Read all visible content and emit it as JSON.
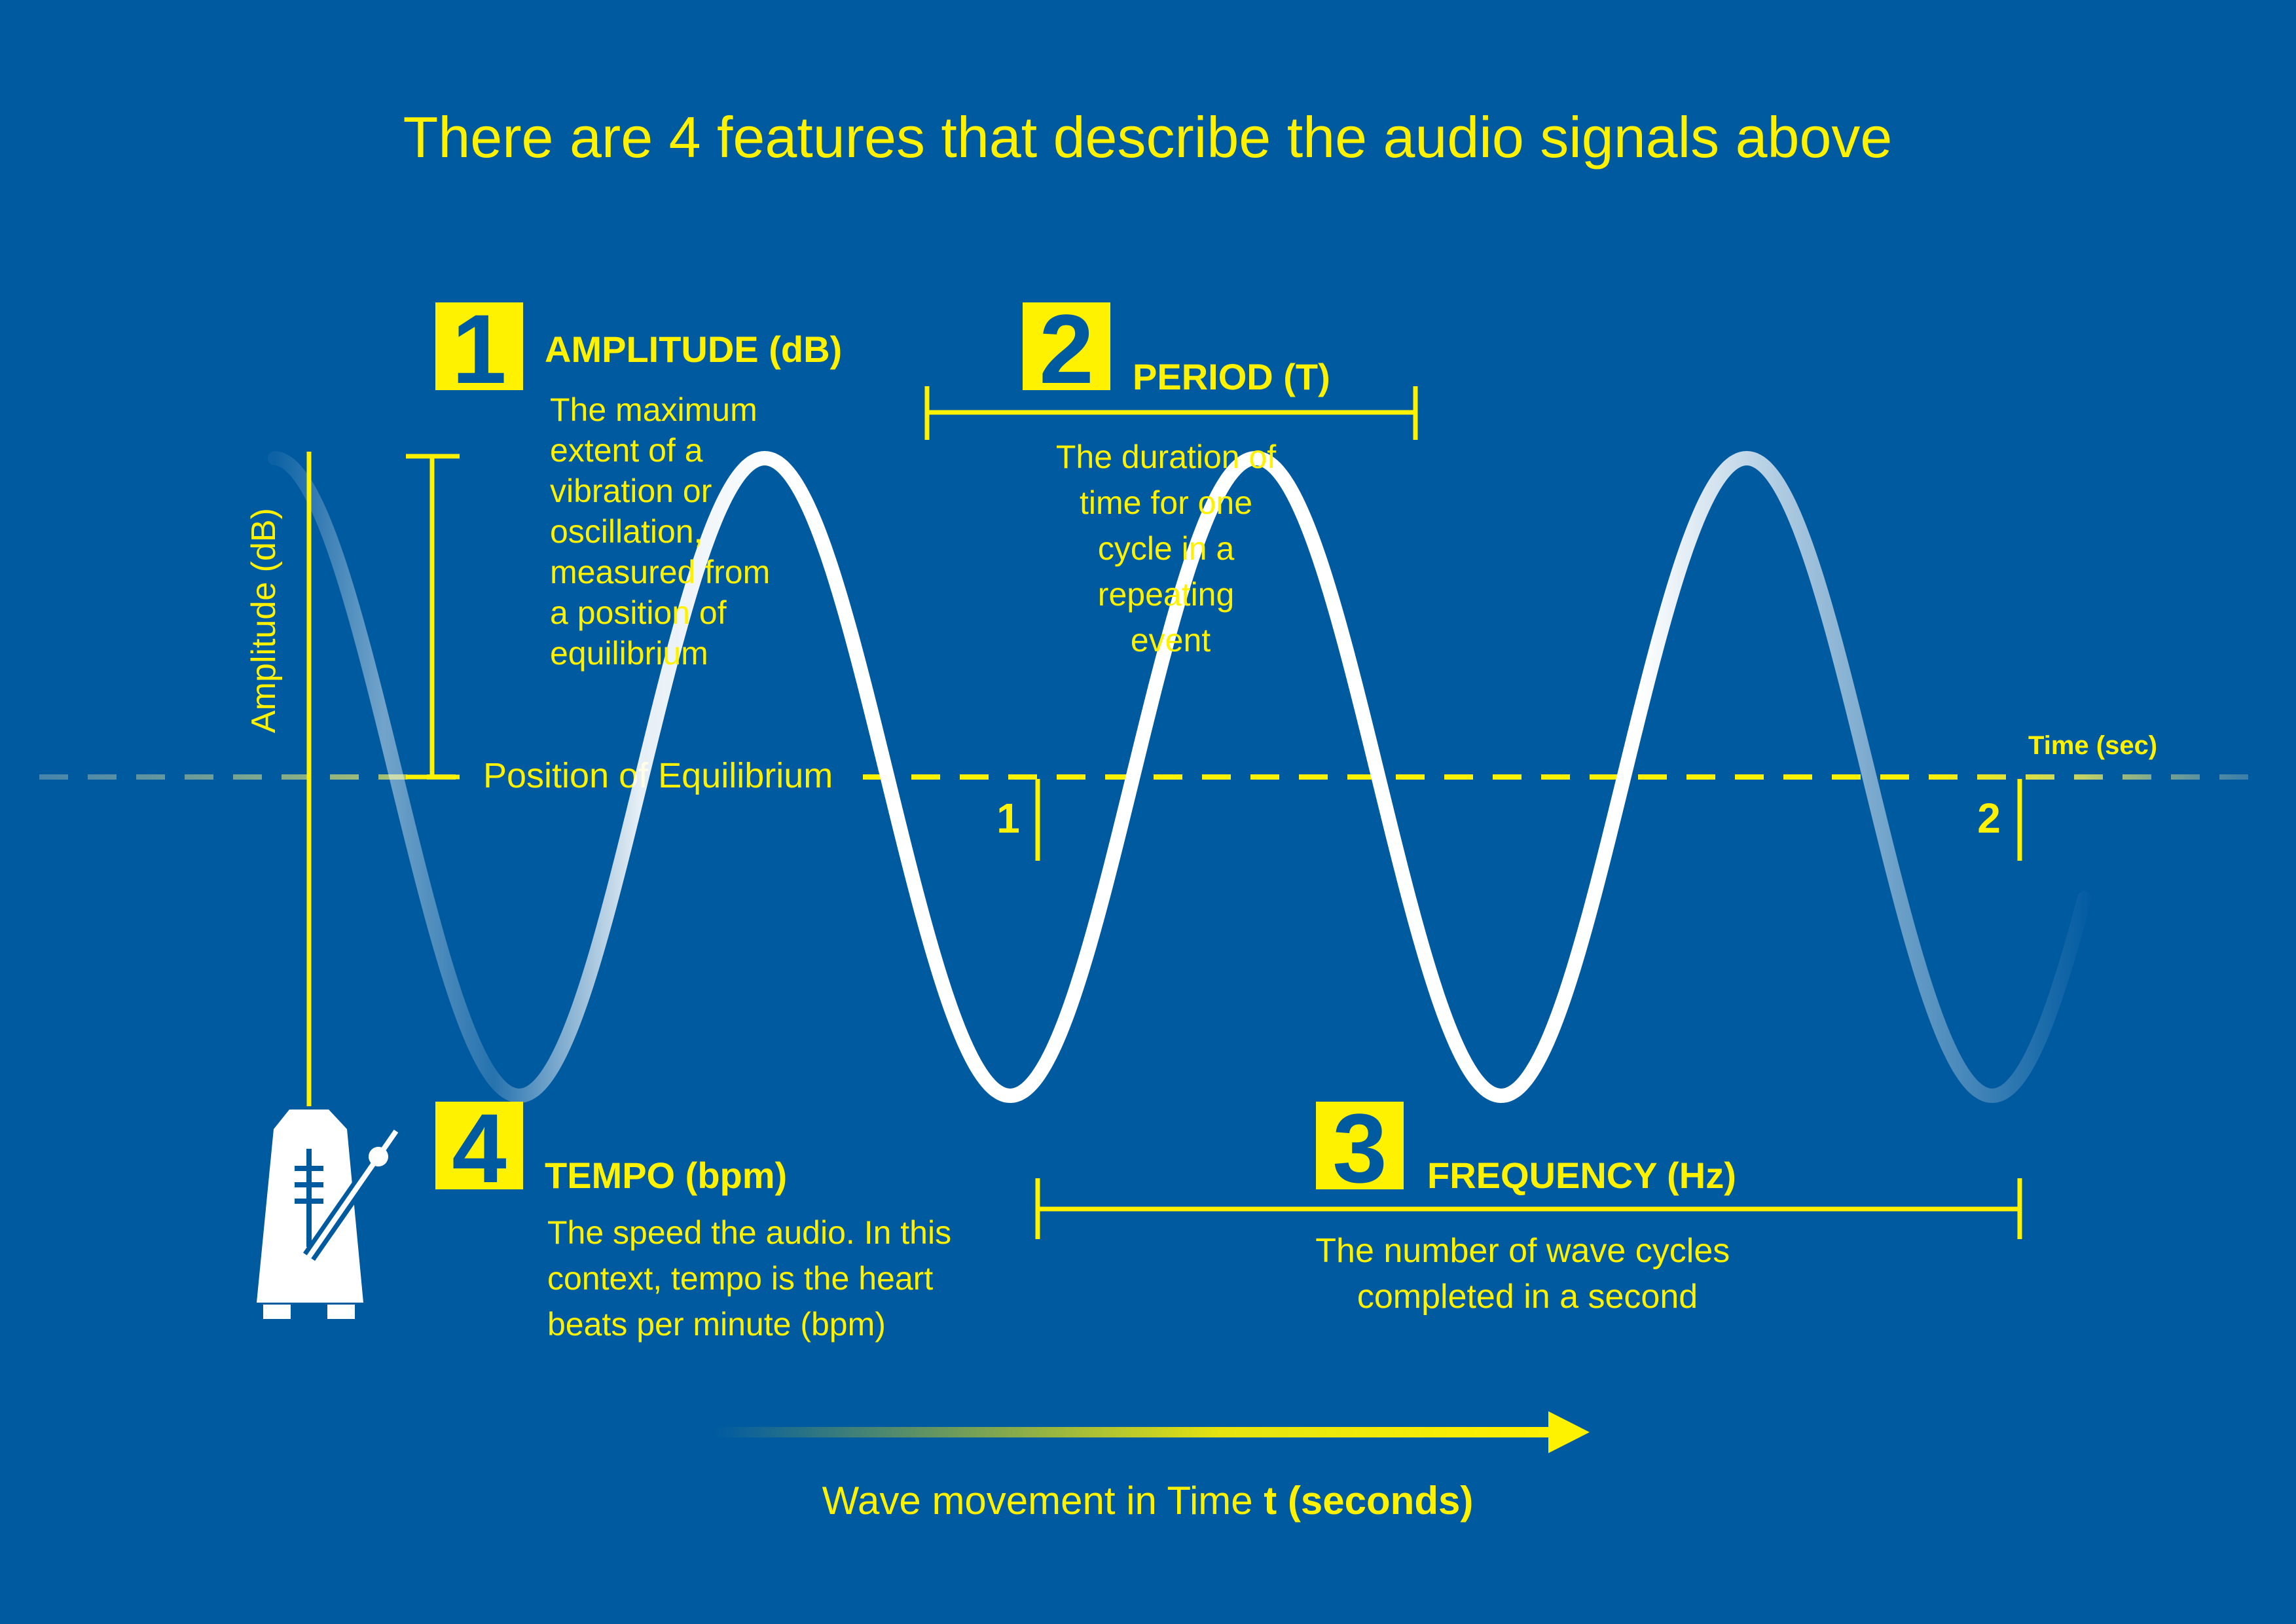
{
  "title": "There are 4 features that describe the audio signals above",
  "colors": {
    "background": "#005aa0",
    "accent": "#fff200",
    "wave": "#ffffff",
    "badge_text": "#005aa0"
  },
  "axes": {
    "y_label": "Amplitude (dB)",
    "x_label": "Time (sec)",
    "equilibrium_label": "Position of Equilibrium",
    "tick_1": "1",
    "tick_2": "2"
  },
  "features": [
    {
      "number": "1",
      "heading": "AMPLITUDE (dB)",
      "description_lines": [
        "The maximum",
        "extent of a",
        "vibration or",
        "oscillation,",
        "measured from",
        "a position of",
        "equilibrium"
      ]
    },
    {
      "number": "2",
      "heading": "PERIOD (T)",
      "description_lines": [
        "The duration of",
        "time for one",
        "cycle in a",
        "repeating",
        "event"
      ]
    },
    {
      "number": "3",
      "heading": "FREQUENCY (Hz)",
      "description_lines": [
        "The number of wave cycles",
        "completed in a second"
      ]
    },
    {
      "number": "4",
      "heading": "TEMPO (bpm)",
      "description_lines": [
        "The speed the audio. In this",
        "context, tempo is the heart",
        "beats per minute (bpm)"
      ]
    }
  ],
  "footer": {
    "text": "Wave movement in Time ",
    "emphasis": "t (seconds)"
  },
  "icons": {
    "metronome": "metronome-icon"
  }
}
